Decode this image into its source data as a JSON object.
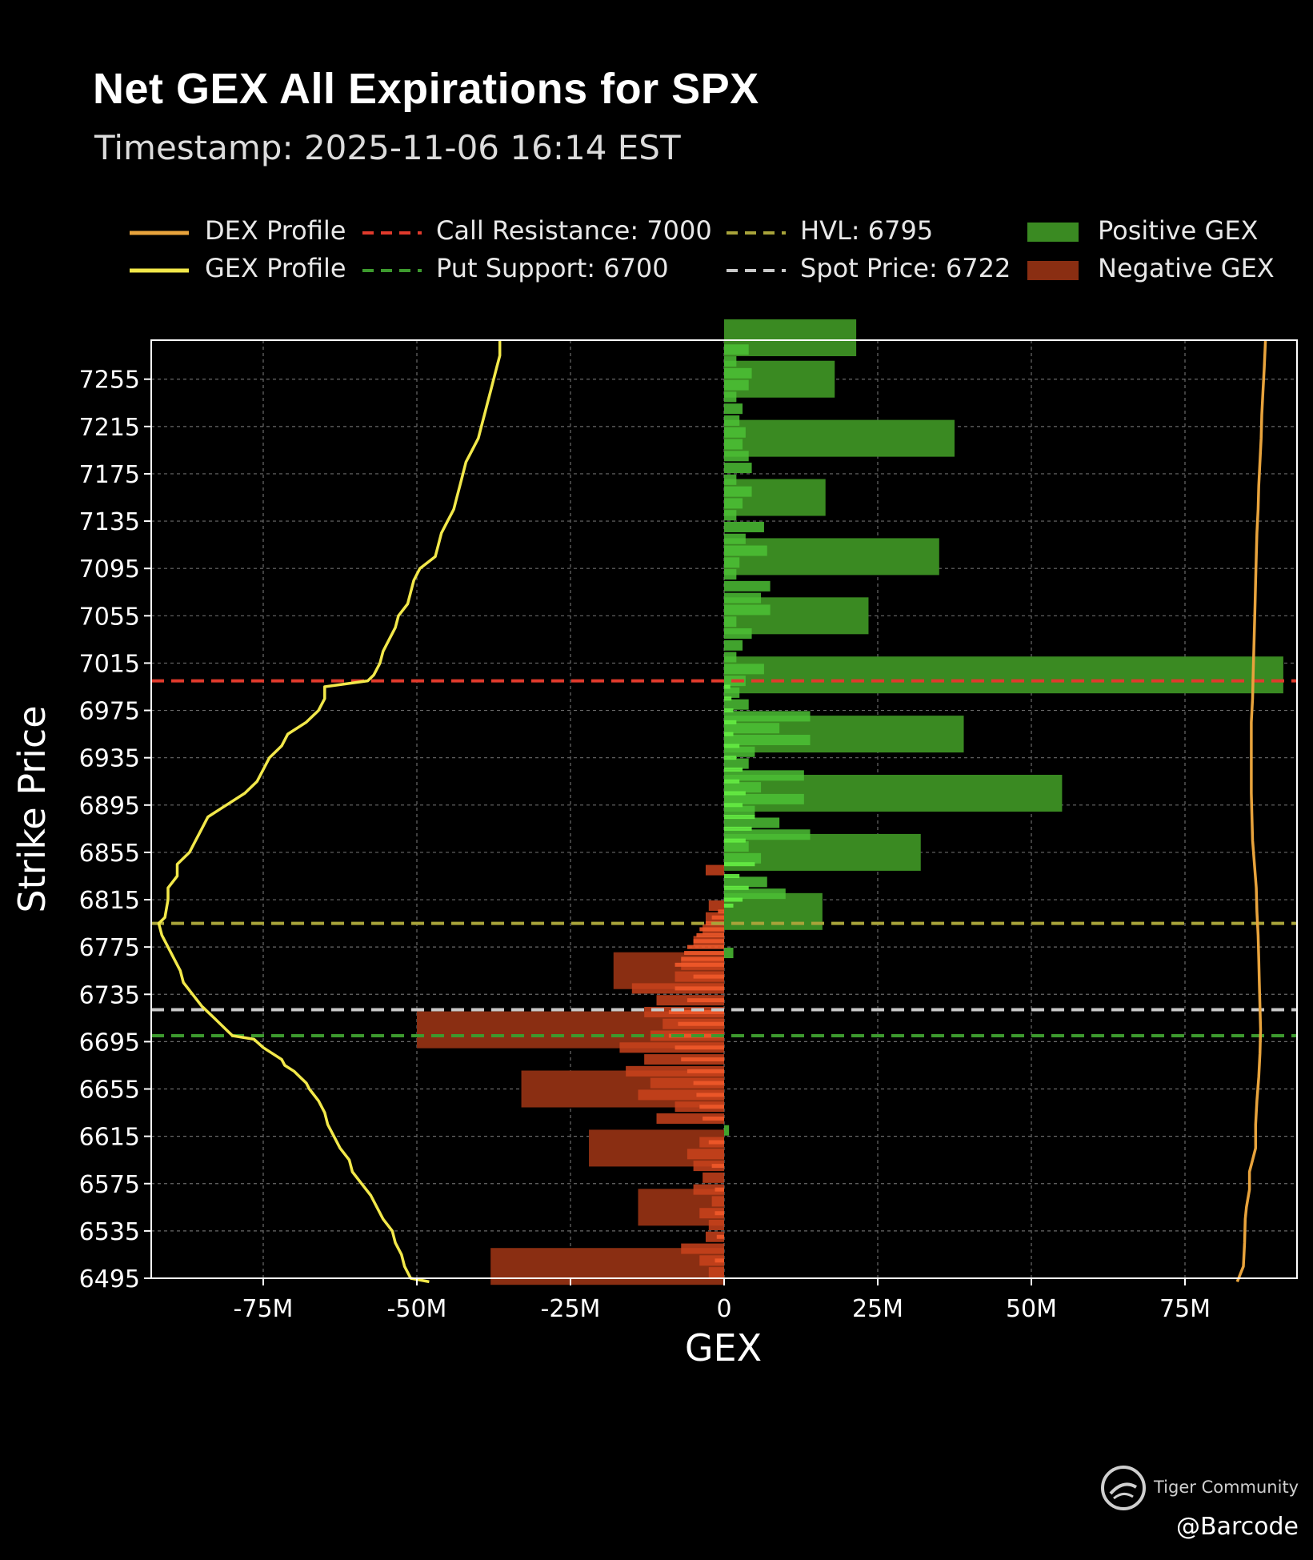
{
  "title": "Net GEX All Expirations for SPX",
  "subtitle": "Timestamp: 2025-11-06 16:14 EST",
  "legend": {
    "dex": "DEX Profile",
    "gex": "GEX Profile",
    "call": "Call Resistance: 7000",
    "put": "Put Support: 6700",
    "hvl": "HVL: 6795",
    "spot": "Spot Price: 6722",
    "pos": "Positive GEX",
    "neg": "Negative GEX"
  },
  "watermark": {
    "text": "Tiger Community",
    "handle": "@Barcode"
  },
  "colors": {
    "background": "#000000",
    "dex_line": "#e8a33c",
    "gex_line": "#f2e84a",
    "call_resistance": "#e03a2c",
    "put_support": "#3d9a2e",
    "hvl": "#a8a33a",
    "spot": "#c8c8c8",
    "positive_gex": "#3a8a22",
    "negative_gex": "#8a2e12",
    "positive_gex_bright": "#66ee44",
    "negative_gex_bright": "#f0592a"
  },
  "chart_data": {
    "type": "bar",
    "orientation": "horizontal",
    "xlabel": "GEX",
    "ylabel": "Strike Price",
    "xlim": [
      -93000000,
      93000000
    ],
    "ylim": [
      6495,
      7290
    ],
    "xticks": [
      -75000000,
      -50000000,
      -25000000,
      0,
      25000000,
      50000000,
      75000000
    ],
    "xtick_labels": [
      "-75M",
      "-50M",
      "-25M",
      "0",
      "25M",
      "50M",
      "75M"
    ],
    "yticks": [
      6495,
      6535,
      6575,
      6615,
      6655,
      6695,
      6735,
      6775,
      6815,
      6855,
      6895,
      6935,
      6975,
      7015,
      7055,
      7095,
      7135,
      7175,
      7215,
      7255
    ],
    "grid": true,
    "levels": {
      "call_resistance": 7000,
      "put_support": 6700,
      "hvl": 6795,
      "spot_price": 6722
    },
    "bars_25": [
      {
        "strike": 6505,
        "value": -38000000
      },
      {
        "strike": 6555,
        "value": -14000000
      },
      {
        "strike": 6605,
        "value": -22000000
      },
      {
        "strike": 6655,
        "value": -33000000
      },
      {
        "strike": 6705,
        "value": -50000000
      },
      {
        "strike": 6755,
        "value": -18000000
      },
      {
        "strike": 6805,
        "value": 16000000
      },
      {
        "strike": 6855,
        "value": 32000000
      },
      {
        "strike": 6905,
        "value": 55000000
      },
      {
        "strike": 6955,
        "value": 39000000
      },
      {
        "strike": 7005,
        "value": 91000000
      },
      {
        "strike": 7055,
        "value": 23500000
      },
      {
        "strike": 7105,
        "value": 35000000
      },
      {
        "strike": 7155,
        "value": 16500000
      },
      {
        "strike": 7205,
        "value": 37500000
      },
      {
        "strike": 7255,
        "value": 18000000
      },
      {
        "strike": 7290,
        "value": 21500000
      }
    ],
    "bars_5": [
      {
        "strike": 6500,
        "value": -2500000
      },
      {
        "strike": 6510,
        "value": -4000000
      },
      {
        "strike": 6520,
        "value": -7000000
      },
      {
        "strike": 6530,
        "value": -3000000
      },
      {
        "strike": 6540,
        "value": -2500000
      },
      {
        "strike": 6550,
        "value": -4000000
      },
      {
        "strike": 6560,
        "value": -2000000
      },
      {
        "strike": 6570,
        "value": -5000000
      },
      {
        "strike": 6580,
        "value": -3500000
      },
      {
        "strike": 6590,
        "value": -5000000
      },
      {
        "strike": 6600,
        "value": -6000000
      },
      {
        "strike": 6610,
        "value": -4000000
      },
      {
        "strike": 6620,
        "value": 800000
      },
      {
        "strike": 6630,
        "value": -11000000
      },
      {
        "strike": 6640,
        "value": -8000000
      },
      {
        "strike": 6650,
        "value": -14000000
      },
      {
        "strike": 6660,
        "value": -12000000
      },
      {
        "strike": 6670,
        "value": -16000000
      },
      {
        "strike": 6680,
        "value": -13000000
      },
      {
        "strike": 6690,
        "value": -17000000
      },
      {
        "strike": 6700,
        "value": -12000000
      },
      {
        "strike": 6710,
        "value": -10000000
      },
      {
        "strike": 6720,
        "value": -13000000
      },
      {
        "strike": 6730,
        "value": -11000000
      },
      {
        "strike": 6740,
        "value": -15000000
      },
      {
        "strike": 6750,
        "value": -8000000
      },
      {
        "strike": 6760,
        "value": -7000000
      },
      {
        "strike": 6770,
        "value": 1500000
      },
      {
        "strike": 6780,
        "value": -5000000
      },
      {
        "strike": 6790,
        "value": -3500000
      },
      {
        "strike": 6800,
        "value": -3000000
      },
      {
        "strike": 6810,
        "value": -2500000
      },
      {
        "strike": 6820,
        "value": 10000000
      },
      {
        "strike": 6830,
        "value": 7000000
      },
      {
        "strike": 6840,
        "value": -3000000
      },
      {
        "strike": 6850,
        "value": 6000000
      },
      {
        "strike": 6860,
        "value": 4000000
      },
      {
        "strike": 6870,
        "value": 14000000
      },
      {
        "strike": 6880,
        "value": 9000000
      },
      {
        "strike": 6890,
        "value": 5000000
      },
      {
        "strike": 6900,
        "value": 13000000
      },
      {
        "strike": 6910,
        "value": 6000000
      },
      {
        "strike": 6920,
        "value": 13000000
      },
      {
        "strike": 6930,
        "value": 4000000
      },
      {
        "strike": 6940,
        "value": 5000000
      },
      {
        "strike": 6950,
        "value": 14000000
      },
      {
        "strike": 6960,
        "value": 9000000
      },
      {
        "strike": 6970,
        "value": 14000000
      },
      {
        "strike": 6980,
        "value": 4000000
      },
      {
        "strike": 6990,
        "value": 2500000
      },
      {
        "strike": 7000,
        "value": 3500000
      },
      {
        "strike": 7010,
        "value": 6500000
      },
      {
        "strike": 7020,
        "value": 2000000
      },
      {
        "strike": 7030,
        "value": 3000000
      },
      {
        "strike": 7040,
        "value": 4500000
      },
      {
        "strike": 7050,
        "value": 2000000
      },
      {
        "strike": 7060,
        "value": 7500000
      },
      {
        "strike": 7070,
        "value": 6000000
      },
      {
        "strike": 7080,
        "value": 7500000
      },
      {
        "strike": 7090,
        "value": 2000000
      },
      {
        "strike": 7100,
        "value": 2500000
      },
      {
        "strike": 7110,
        "value": 7000000
      },
      {
        "strike": 7120,
        "value": 3500000
      },
      {
        "strike": 7130,
        "value": 6500000
      },
      {
        "strike": 7140,
        "value": 2000000
      },
      {
        "strike": 7150,
        "value": 3000000
      },
      {
        "strike": 7160,
        "value": 4500000
      },
      {
        "strike": 7170,
        "value": 2000000
      },
      {
        "strike": 7180,
        "value": 4500000
      },
      {
        "strike": 7190,
        "value": 4000000
      },
      {
        "strike": 7200,
        "value": 3000000
      },
      {
        "strike": 7210,
        "value": 3500000
      },
      {
        "strike": 7220,
        "value": 2500000
      },
      {
        "strike": 7230,
        "value": 3000000
      },
      {
        "strike": 7240,
        "value": 2000000
      },
      {
        "strike": 7250,
        "value": 4000000
      },
      {
        "strike": 7260,
        "value": 4500000
      },
      {
        "strike": 7270,
        "value": 2000000
      },
      {
        "strike": 7280,
        "value": 4000000
      }
    ],
    "bars_1": [
      {
        "strike": 6760,
        "value": -8000000
      },
      {
        "strike": 6765,
        "value": -7000000
      },
      {
        "strike": 6770,
        "value": -6500000
      },
      {
        "strike": 6775,
        "value": -6000000
      },
      {
        "strike": 6780,
        "value": -5000000
      },
      {
        "strike": 6785,
        "value": -4500000
      },
      {
        "strike": 6790,
        "value": -4000000
      },
      {
        "strike": 6795,
        "value": -3000000
      },
      {
        "strike": 6800,
        "value": -2000000
      },
      {
        "strike": 6805,
        "value": -1000000
      },
      {
        "strike": 6810,
        "value": 1500000
      },
      {
        "strike": 6815,
        "value": 3000000
      },
      {
        "strike": 6825,
        "value": 4000000
      },
      {
        "strike": 6835,
        "value": 2500000
      },
      {
        "strike": 6845,
        "value": 5000000
      },
      {
        "strike": 6865,
        "value": 3500000
      },
      {
        "strike": 6875,
        "value": 4500000
      },
      {
        "strike": 6885,
        "value": 5000000
      },
      {
        "strike": 6895,
        "value": 3000000
      },
      {
        "strike": 6905,
        "value": 3500000
      },
      {
        "strike": 6915,
        "value": 2500000
      },
      {
        "strike": 6925,
        "value": 3000000
      },
      {
        "strike": 6935,
        "value": 2000000
      },
      {
        "strike": 6945,
        "value": 2500000
      },
      {
        "strike": 6955,
        "value": 1500000
      },
      {
        "strike": 6965,
        "value": 2000000
      },
      {
        "strike": 6975,
        "value": 1500000
      },
      {
        "strike": 6985,
        "value": 1200000
      },
      {
        "strike": 6995,
        "value": 1000000
      },
      {
        "strike": 6700,
        "value": -9000000
      },
      {
        "strike": 6710,
        "value": -7500000
      },
      {
        "strike": 6720,
        "value": -9000000
      },
      {
        "strike": 6730,
        "value": -6000000
      },
      {
        "strike": 6740,
        "value": -8000000
      },
      {
        "strike": 6750,
        "value": -5000000
      },
      {
        "strike": 6690,
        "value": -8000000
      },
      {
        "strike": 6680,
        "value": -7000000
      },
      {
        "strike": 6670,
        "value": -6000000
      },
      {
        "strike": 6660,
        "value": -5000000
      },
      {
        "strike": 6650,
        "value": -4500000
      },
      {
        "strike": 6640,
        "value": -4000000
      },
      {
        "strike": 6630,
        "value": -3500000
      },
      {
        "strike": 6610,
        "value": -2500000
      },
      {
        "strike": 6590,
        "value": -2000000
      },
      {
        "strike": 6570,
        "value": -1500000
      },
      {
        "strike": 6550,
        "value": -1500000
      },
      {
        "strike": 6530,
        "value": -1200000
      },
      {
        "strike": 6510,
        "value": -1500000
      }
    ],
    "gex_profile": [
      [
        6492,
        -48000000
      ],
      [
        6495,
        -51000000
      ],
      [
        6505,
        -52000000
      ],
      [
        6515,
        -52500000
      ],
      [
        6525,
        -53500000
      ],
      [
        6535,
        -54000000
      ],
      [
        6545,
        -55500000
      ],
      [
        6555,
        -56500000
      ],
      [
        6565,
        -57500000
      ],
      [
        6575,
        -59000000
      ],
      [
        6585,
        -60500000
      ],
      [
        6595,
        -61000000
      ],
      [
        6605,
        -62500000
      ],
      [
        6615,
        -63500000
      ],
      [
        6625,
        -64500000
      ],
      [
        6635,
        -65000000
      ],
      [
        6645,
        -66000000
      ],
      [
        6655,
        -67500000
      ],
      [
        6660,
        -68000000
      ],
      [
        6665,
        -69000000
      ],
      [
        6670,
        -70000000
      ],
      [
        6675,
        -71500000
      ],
      [
        6680,
        -72000000
      ],
      [
        6685,
        -73500000
      ],
      [
        6690,
        -75000000
      ],
      [
        6697,
        -76500000
      ],
      [
        6700,
        -80000000
      ],
      [
        6705,
        -81000000
      ],
      [
        6715,
        -83000000
      ],
      [
        6725,
        -85000000
      ],
      [
        6735,
        -86500000
      ],
      [
        6745,
        -88000000
      ],
      [
        6755,
        -88500000
      ],
      [
        6765,
        -89500000
      ],
      [
        6775,
        -90500000
      ],
      [
        6785,
        -91500000
      ],
      [
        6795,
        -92000000
      ],
      [
        6800,
        -91000000
      ],
      [
        6815,
        -90500000
      ],
      [
        6825,
        -90500000
      ],
      [
        6835,
        -89000000
      ],
      [
        6845,
        -89000000
      ],
      [
        6855,
        -87000000
      ],
      [
        6865,
        -86000000
      ],
      [
        6875,
        -85000000
      ],
      [
        6885,
        -84000000
      ],
      [
        6895,
        -81000000
      ],
      [
        6905,
        -78000000
      ],
      [
        6915,
        -76000000
      ],
      [
        6925,
        -75000000
      ],
      [
        6935,
        -74000000
      ],
      [
        6945,
        -72000000
      ],
      [
        6955,
        -71000000
      ],
      [
        6965,
        -68000000
      ],
      [
        6975,
        -66000000
      ],
      [
        6985,
        -65000000
      ],
      [
        6995,
        -65000000
      ],
      [
        7000,
        -58000000
      ],
      [
        7005,
        -57000000
      ],
      [
        7015,
        -56000000
      ],
      [
        7025,
        -55500000
      ],
      [
        7035,
        -54500000
      ],
      [
        7045,
        -53500000
      ],
      [
        7055,
        -53000000
      ],
      [
        7065,
        -51500000
      ],
      [
        7075,
        -51000000
      ],
      [
        7085,
        -50500000
      ],
      [
        7095,
        -49500000
      ],
      [
        7105,
        -47000000
      ],
      [
        7115,
        -46500000
      ],
      [
        7125,
        -46000000
      ],
      [
        7135,
        -45000000
      ],
      [
        7145,
        -44000000
      ],
      [
        7155,
        -43500000
      ],
      [
        7165,
        -43000000
      ],
      [
        7175,
        -42500000
      ],
      [
        7185,
        -42000000
      ],
      [
        7195,
        -41000000
      ],
      [
        7205,
        -40000000
      ],
      [
        7215,
        -39500000
      ],
      [
        7225,
        -39000000
      ],
      [
        7235,
        -38500000
      ],
      [
        7245,
        -38000000
      ],
      [
        7255,
        -37500000
      ],
      [
        7265,
        -37000000
      ],
      [
        7275,
        -36500000
      ],
      [
        7290,
        -36500000
      ]
    ],
    "dex_profile": [
      [
        6492,
        83500000
      ],
      [
        6505,
        84500000
      ],
      [
        6525,
        84700000
      ],
      [
        6545,
        84800000
      ],
      [
        6555,
        85000000
      ],
      [
        6570,
        85500000
      ],
      [
        6585,
        85500000
      ],
      [
        6595,
        86000000
      ],
      [
        6605,
        86500000
      ],
      [
        6625,
        86500000
      ],
      [
        6645,
        86700000
      ],
      [
        6665,
        87000000
      ],
      [
        6685,
        87200000
      ],
      [
        6705,
        87300000
      ],
      [
        6725,
        87200000
      ],
      [
        6745,
        87100000
      ],
      [
        6765,
        87000000
      ],
      [
        6785,
        86900000
      ],
      [
        6805,
        86700000
      ],
      [
        6825,
        86600000
      ],
      [
        6845,
        86300000
      ],
      [
        6865,
        86000000
      ],
      [
        6885,
        85900000
      ],
      [
        6905,
        85800000
      ],
      [
        6925,
        85800000
      ],
      [
        6945,
        85800000
      ],
      [
        6965,
        85800000
      ],
      [
        6985,
        86000000
      ],
      [
        7005,
        86100000
      ],
      [
        7025,
        86200000
      ],
      [
        7045,
        86300000
      ],
      [
        7065,
        86400000
      ],
      [
        7085,
        86500000
      ],
      [
        7105,
        86600000
      ],
      [
        7125,
        86700000
      ],
      [
        7145,
        86900000
      ],
      [
        7165,
        87000000
      ],
      [
        7185,
        87200000
      ],
      [
        7205,
        87400000
      ],
      [
        7225,
        87500000
      ],
      [
        7245,
        87700000
      ],
      [
        7265,
        87900000
      ],
      [
        7290,
        88100000
      ]
    ]
  }
}
